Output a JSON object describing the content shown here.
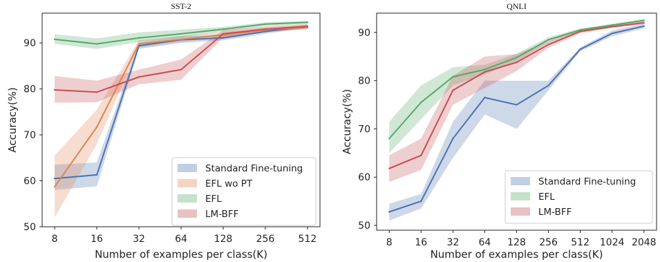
{
  "chart_data": [
    {
      "type": "line",
      "title": "SST-2",
      "xlabel": "Number of examples per class(K)",
      "ylabel": "Accuracy(%)",
      "x": [
        "8",
        "16",
        "32",
        "64",
        "128",
        "256",
        "512"
      ],
      "yticks": [
        50,
        60,
        70,
        80,
        90
      ],
      "ylim": [
        50,
        96.5
      ],
      "grid": false,
      "legend_position": "bottom-right",
      "series": [
        {
          "name": "Standard Fine-tuning",
          "color": "#4c72b0",
          "values": [
            60.5,
            61.3,
            89.4,
            90.7,
            91.1,
            92.5,
            93.6
          ],
          "lower": [
            58.0,
            58.8,
            88.7,
            90.0,
            90.6,
            92.0,
            93.2
          ],
          "upper": [
            63.5,
            64.0,
            90.1,
            91.5,
            91.7,
            93.0,
            94.0
          ]
        },
        {
          "name": "EFL wo PT",
          "color": "#dd8452",
          "values": [
            58.7,
            71.7,
            89.8,
            90.8,
            91.8,
            92.9,
            93.4
          ],
          "lower": [
            52.0,
            68.0,
            89.0,
            90.2,
            91.2,
            92.4,
            93.0
          ],
          "upper": [
            65.5,
            75.5,
            90.6,
            91.5,
            92.4,
            93.4,
            93.9
          ]
        },
        {
          "name": "EFL",
          "color": "#55a868",
          "values": [
            90.8,
            89.8,
            91.1,
            92.0,
            93.0,
            94.1,
            94.5
          ],
          "lower": [
            89.8,
            88.7,
            90.2,
            91.2,
            92.5,
            93.7,
            94.1
          ],
          "upper": [
            91.9,
            91.0,
            92.3,
            92.9,
            93.5,
            94.5,
            94.8
          ]
        },
        {
          "name": "LM-BFF",
          "color": "#c44e52",
          "values": [
            79.8,
            79.3,
            82.6,
            84.2,
            92.0,
            93.0,
            93.6
          ],
          "lower": [
            77.0,
            77.1,
            81.0,
            82.0,
            91.2,
            92.5,
            93.1
          ],
          "upper": [
            82.8,
            81.8,
            84.2,
            86.4,
            92.8,
            93.6,
            94.1
          ]
        }
      ]
    },
    {
      "type": "line",
      "title": "QNLI",
      "xlabel": "Number of examples per class(K)",
      "ylabel": "Accuracy(%)",
      "x": [
        "8",
        "16",
        "32",
        "64",
        "128",
        "256",
        "512",
        "1024",
        "2048"
      ],
      "yticks": [
        50,
        60,
        70,
        80,
        90
      ],
      "ylim": [
        49,
        94
      ],
      "grid": false,
      "legend_position": "bottom-right",
      "series": [
        {
          "name": "Standard Fine-tuning",
          "color": "#4c72b0",
          "values": [
            52.8,
            55.0,
            68.0,
            76.5,
            75.0,
            79.0,
            86.5,
            89.8,
            91.3
          ],
          "lower": [
            51.0,
            53.5,
            64.0,
            73.0,
            70.0,
            78.0,
            86.1,
            89.2,
            90.8
          ],
          "upper": [
            54.5,
            56.5,
            71.5,
            80.0,
            80.0,
            80.0,
            86.9,
            90.4,
            91.8
          ]
        },
        {
          "name": "EFL",
          "color": "#55a868",
          "values": [
            68.0,
            75.5,
            80.8,
            82.3,
            84.8,
            88.5,
            90.5,
            91.5,
            92.5
          ],
          "lower": [
            65.0,
            72.0,
            79.0,
            81.3,
            84.0,
            88.0,
            90.2,
            91.2,
            92.2
          ],
          "upper": [
            71.5,
            79.0,
            82.8,
            83.3,
            85.6,
            89.0,
            90.8,
            91.8,
            92.8
          ]
        },
        {
          "name": "LM-BFF",
          "color": "#c44e52",
          "values": [
            61.8,
            64.5,
            78.0,
            81.8,
            83.8,
            87.5,
            90.2,
            91.2,
            92.0
          ],
          "lower": [
            59.0,
            61.5,
            75.0,
            78.5,
            82.0,
            86.8,
            89.8,
            90.9,
            91.7
          ],
          "upper": [
            64.5,
            68.0,
            81.0,
            85.0,
            85.5,
            88.2,
            90.6,
            91.5,
            92.3
          ]
        }
      ]
    }
  ]
}
